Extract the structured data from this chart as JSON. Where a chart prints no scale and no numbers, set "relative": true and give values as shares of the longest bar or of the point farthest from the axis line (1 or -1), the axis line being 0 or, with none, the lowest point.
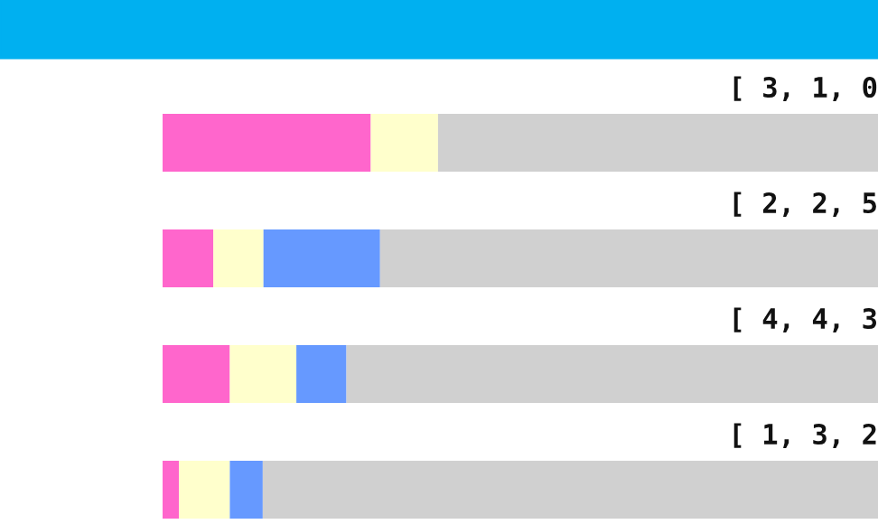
{
  "chart_data": {
    "type": "bar",
    "orientation": "horizontal",
    "stacked": true,
    "relative": true,
    "grid": false,
    "legend": false,
    "categories": [
      null,
      null,
      null,
      null
    ],
    "series": [
      {
        "color": "#ff66cc",
        "values": [
          0.291,
          0.071,
          0.094,
          0.023
        ]
      },
      {
        "color": "#ffffcc",
        "values": [
          0.094,
          0.07,
          0.093,
          0.071
        ]
      },
      {
        "color": "#6699ff",
        "values": [
          0,
          0.163,
          0.07,
          0.046
        ]
      },
      {
        "color": "#d0d0d0",
        "values": [
          0.615,
          0.696,
          0.743,
          0.86
        ]
      }
    ],
    "annotations": [
      "[ 3, 1, 0",
      "[ 2, 2, 5",
      "[ 4, 4, 3",
      "[ 1, 3, 2"
    ]
  }
}
